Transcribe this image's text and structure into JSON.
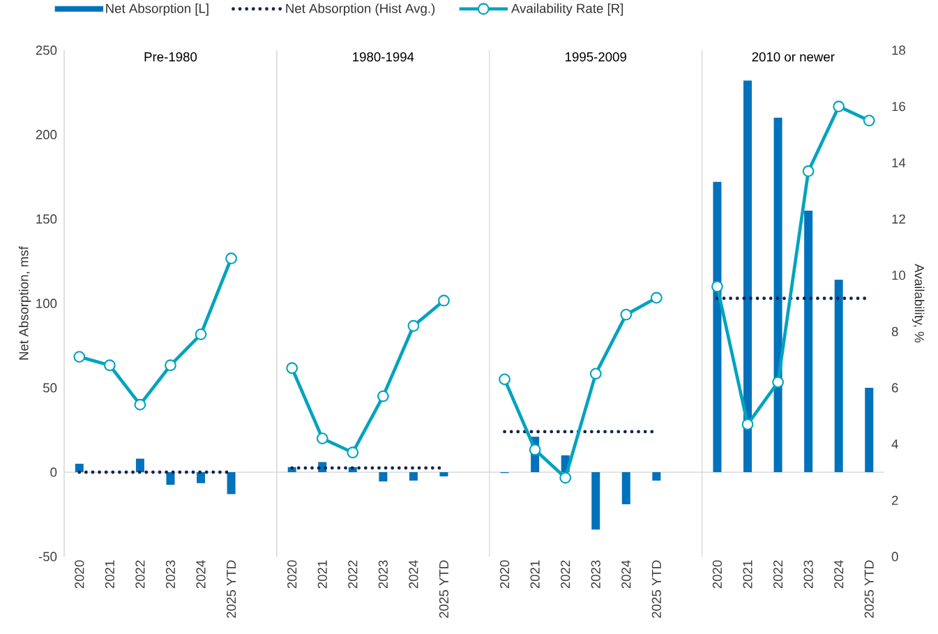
{
  "chart_data": {
    "type": "bar",
    "categories": [
      "2020",
      "2021",
      "2022",
      "2023",
      "2024",
      "2025 YTD",
      null,
      "2020",
      "2021",
      "2022",
      "2023",
      "2024",
      "2025 YTD",
      null,
      "2020",
      "2021",
      "2022",
      "2023",
      "2024",
      "2025 YTD",
      null,
      "2020",
      "2021",
      "2022",
      "2023",
      "2024",
      "2025 YTD"
    ],
    "annotations": [
      "Pre-1980",
      "1980-1994",
      "1995-2009",
      "2010 or newer"
    ],
    "series": [
      {
        "name": "Net Absorption [L]",
        "color": "#0072bc",
        "values": [
          5,
          null,
          8,
          -7.5,
          -6.5,
          -13,
          null,
          3,
          6,
          3,
          -5.5,
          -5,
          -2.5,
          null,
          -0.5,
          21,
          10,
          -34,
          -19,
          -5,
          null,
          172,
          232,
          210,
          155,
          114,
          50
        ]
      },
      {
        "name": "Net Absorption (Hist Avg.)",
        "type": "line",
        "line_style": "dotted",
        "marker": "none",
        "color": "#14264f",
        "values": [
          0,
          0,
          0,
          0,
          0,
          0,
          null,
          2.5,
          2.5,
          2.5,
          2.5,
          2.5,
          2.5,
          null,
          24,
          24,
          24,
          24,
          24,
          24,
          null,
          103,
          103,
          103,
          103,
          103,
          103
        ]
      },
      {
        "name": "Availability Rate [R]",
        "type": "line",
        "axis": "y2",
        "line_style": "solid",
        "marker": "circle",
        "color": "#00a3bf",
        "values": [
          7.1,
          6.8,
          5.4,
          6.8,
          7.9,
          10.6,
          null,
          6.7,
          4.2,
          3.7,
          5.7,
          8.2,
          9.1,
          null,
          6.3,
          3.8,
          2.8,
          6.5,
          8.6,
          9.2,
          null,
          9.6,
          4.7,
          6.2,
          13.7,
          16.0,
          15.5
        ]
      }
    ],
    "ylabel": "Net Absorption, msf",
    "y2label": "Availability, %",
    "ylim": [
      -50,
      250
    ],
    "yticks": [
      -50,
      0,
      50,
      100,
      150,
      200,
      250
    ],
    "y2lim": [
      0,
      18
    ],
    "y2ticks": [
      0,
      2,
      4,
      6,
      8,
      10,
      12,
      14,
      16,
      18
    ],
    "legend": "top"
  }
}
